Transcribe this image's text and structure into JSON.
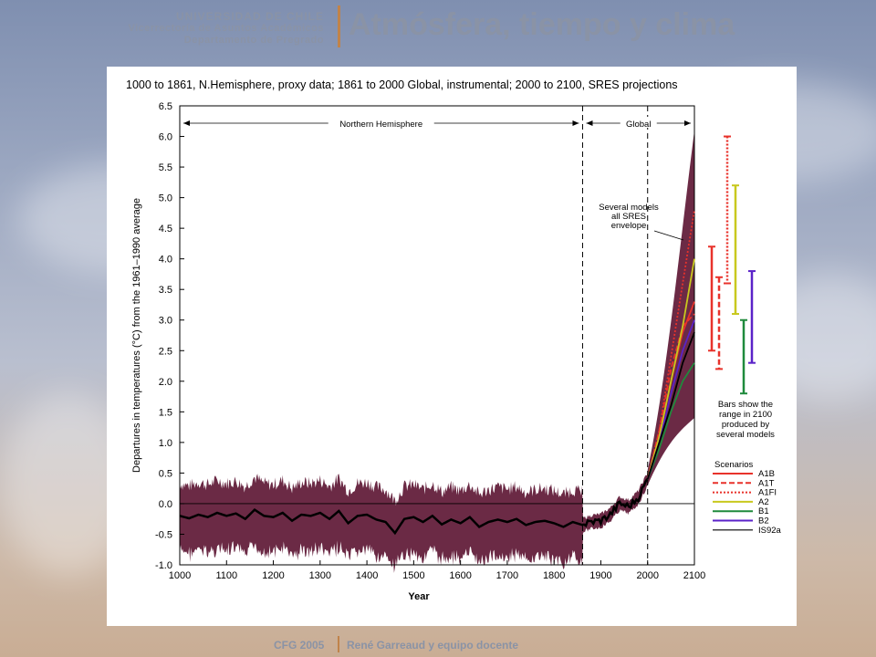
{
  "header": {
    "university": "UNIVERSIDAD DE CHILE",
    "line1": "Vicerrectoría de Asuntos Académicos",
    "line2": "Departamento de Pregrado",
    "course_title": "Atmósfera, tiempo y clima"
  },
  "footer": {
    "course": "CFG 2005",
    "author": "René Garreaud y equipo docente"
  },
  "colors": {
    "envelope": "#6b2a45",
    "A1B": "#e8322b",
    "A1T": "#e8322b",
    "A1FI": "#e8322b",
    "A2": "#c8c81e",
    "B1": "#1f8a3c",
    "B2": "#5a22c8",
    "IS92a": "#000000"
  },
  "chart_data": {
    "type": "line",
    "title": "1000 to 1861, N.Hemisphere, proxy data; 1861 to 2000 Global, instrumental; 2000 to 2100, SRES projections",
    "xlabel": "Year",
    "ylabel": "Departures in temperatures (°C) from the 1961–1990 average",
    "xlim": [
      1000,
      2100
    ],
    "ylim": [
      -1.0,
      6.5
    ],
    "x_ticks": [
      "1000",
      "1100",
      "1200",
      "1300",
      "1400",
      "1500",
      "1600",
      "1700",
      "1800",
      "1900",
      "2000",
      "2100"
    ],
    "y_ticks": [
      "-1.0",
      "-0.5",
      "0.0",
      "0.5",
      "1.0",
      "1.5",
      "2.0",
      "2.5",
      "3.0",
      "3.5",
      "4.0",
      "4.5",
      "5.0",
      "5.5",
      "6.0",
      "6.5"
    ],
    "region_labels": [
      "Northern Hemisphere",
      "Global"
    ],
    "dashed_vlines": [
      1861,
      2000
    ],
    "reference_hline": 0.0,
    "history_mean": {
      "x": [
        1000,
        1020,
        1040,
        1060,
        1080,
        1100,
        1120,
        1140,
        1160,
        1180,
        1200,
        1220,
        1240,
        1260,
        1280,
        1300,
        1320,
        1340,
        1360,
        1380,
        1400,
        1420,
        1440,
        1460,
        1480,
        1500,
        1520,
        1540,
        1560,
        1580,
        1600,
        1620,
        1640,
        1660,
        1680,
        1700,
        1720,
        1740,
        1760,
        1780,
        1800,
        1820,
        1840,
        1861,
        1880,
        1900,
        1920,
        1940,
        1960,
        1980,
        2000
      ],
      "y": [
        -0.2,
        -0.24,
        -0.18,
        -0.22,
        -0.15,
        -0.2,
        -0.16,
        -0.25,
        -0.1,
        -0.2,
        -0.22,
        -0.15,
        -0.28,
        -0.18,
        -0.2,
        -0.15,
        -0.25,
        -0.12,
        -0.32,
        -0.2,
        -0.18,
        -0.26,
        -0.3,
        -0.48,
        -0.25,
        -0.22,
        -0.3,
        -0.2,
        -0.34,
        -0.26,
        -0.32,
        -0.22,
        -0.38,
        -0.3,
        -0.26,
        -0.3,
        -0.25,
        -0.35,
        -0.3,
        -0.28,
        -0.32,
        -0.38,
        -0.3,
        -0.35,
        -0.3,
        -0.28,
        -0.18,
        0.0,
        -0.05,
        0.1,
        0.4
      ]
    },
    "envelope_2100": [
      1.4,
      6.1
    ],
    "series": [
      {
        "name": "A1B",
        "x": [
          2000,
          2025,
          2050,
          2075,
          2100
        ],
        "y": [
          0.4,
          1.1,
          2.0,
          2.8,
          3.3
        ]
      },
      {
        "name": "A1T",
        "x": [
          2000,
          2025,
          2050,
          2075,
          2100
        ],
        "y": [
          0.4,
          1.2,
          2.2,
          2.9,
          3.1
        ]
      },
      {
        "name": "A1FI",
        "x": [
          2000,
          2025,
          2050,
          2075,
          2100
        ],
        "y": [
          0.4,
          1.2,
          2.4,
          3.6,
          4.8
        ]
      },
      {
        "name": "A2",
        "x": [
          2000,
          2025,
          2050,
          2075,
          2100
        ],
        "y": [
          0.4,
          1.1,
          2.0,
          2.9,
          4.0
        ]
      },
      {
        "name": "B1",
        "x": [
          2000,
          2025,
          2050,
          2075,
          2100
        ],
        "y": [
          0.4,
          0.9,
          1.5,
          2.0,
          2.3
        ]
      },
      {
        "name": "B2",
        "x": [
          2000,
          2025,
          2050,
          2075,
          2100
        ],
        "y": [
          0.4,
          1.0,
          1.8,
          2.5,
          3.0
        ]
      },
      {
        "name": "IS92a",
        "x": [
          2000,
          2025,
          2050,
          2075,
          2100
        ],
        "y": [
          0.4,
          1.0,
          1.6,
          2.3,
          2.8
        ]
      }
    ],
    "range_bars": [
      {
        "name": "A1B",
        "low": 2.5,
        "high": 4.2
      },
      {
        "name": "A1T",
        "low": 2.2,
        "high": 3.7
      },
      {
        "name": "A1FI",
        "low": 3.6,
        "high": 6.0
      },
      {
        "name": "A2",
        "low": 3.1,
        "high": 5.2
      },
      {
        "name": "B1",
        "low": 1.8,
        "high": 3.0
      },
      {
        "name": "B2",
        "low": 2.3,
        "high": 3.8
      }
    ],
    "annotations": {
      "envelope_note": [
        "Several models",
        "all SRES",
        "envelope"
      ],
      "bars_note": [
        "Bars show the",
        "range in 2100",
        "produced by",
        "several models"
      ]
    },
    "legend": {
      "title": "Scenarios",
      "placement": "bottom-right",
      "entries": [
        "A1B",
        "A1T",
        "A1FI",
        "A2",
        "B1",
        "B2",
        "IS92a"
      ]
    }
  }
}
